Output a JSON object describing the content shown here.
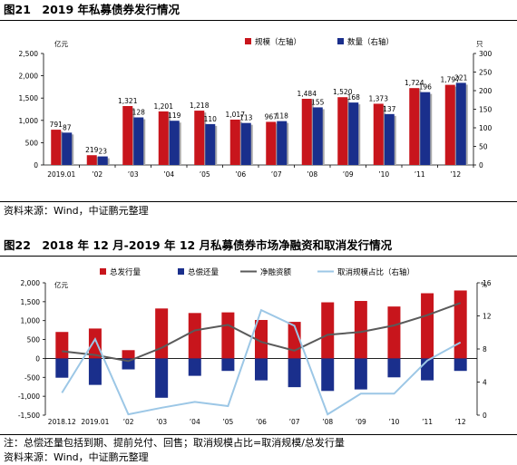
{
  "figure1": {
    "title": "图21　2019 年私募债券发行情况",
    "source": "资料来源：Wind，中证鹏元整理",
    "colors": {
      "bar1": "#c8151c",
      "bar2": "#1a2f8c",
      "shadow": "#aaaaaa"
    }
  },
  "figure2": {
    "title": "图22　2018 年 12 月-2019 年 12 月私募债券市场净融资和取消发行情况",
    "note": "注：总偿还量包括到期、提前兑付、回售；取消规模占比=取消规模/总发行量",
    "source": "资料来源：Wind，中证鹏元整理",
    "colors": {
      "issue": "#c8151c",
      "repay": "#1a2f8c",
      "net": "#5a5a5a",
      "cancel": "#9cc7e6"
    }
  },
  "chart_data": [
    {
      "type": "bar",
      "title": "",
      "left_unit": "亿元",
      "right_unit": "只",
      "categories": [
        "2019.01",
        "02",
        "03",
        "04",
        "05",
        "06",
        "07",
        "08",
        "09",
        "10",
        "11",
        "12"
      ],
      "series": [
        {
          "name": "规模（左轴）",
          "axis": "left",
          "values": [
            791,
            219,
            1321,
            1201,
            1218,
            1017,
            967,
            1484,
            1520,
            1373,
            1724,
            1797
          ],
          "labels": [
            "791",
            "219",
            "1,321",
            "1,201",
            "1,218",
            "1,017",
            "967",
            "1,484",
            "1,520",
            "1,373",
            "1,724",
            "1,797"
          ]
        },
        {
          "name": "数量（右轴）",
          "axis": "right",
          "values": [
            87,
            23,
            128,
            119,
            110,
            113,
            118,
            155,
            168,
            137,
            196,
            221
          ],
          "labels": [
            "87",
            "23",
            "128",
            "119",
            "110",
            "113",
            "118",
            "155",
            "168",
            "137",
            "196",
            "221"
          ]
        }
      ],
      "ylim_left": [
        0,
        2500
      ],
      "yticks_left": [
        "0",
        "500",
        "1,000",
        "1,500",
        "2,000",
        "2,500"
      ],
      "ylim_right": [
        0,
        300
      ],
      "yticks_right": [
        "0",
        "50",
        "100",
        "150",
        "200",
        "250",
        "300"
      ],
      "legend": "top-right",
      "grid": false
    },
    {
      "type": "bar",
      "title": "",
      "left_unit": "亿元",
      "right_unit": "%",
      "categories": [
        "2018.12",
        "2019.01",
        "02",
        "03",
        "04",
        "05",
        "06",
        "07",
        "08",
        "09",
        "10",
        "11",
        "12"
      ],
      "series": [
        {
          "name": "总发行量",
          "type": "bar",
          "axis": "left",
          "values": [
            700,
            791,
            219,
            1321,
            1201,
            1218,
            1017,
            967,
            1484,
            1520,
            1373,
            1724,
            1797
          ]
        },
        {
          "name": "总偿还量",
          "type": "bar",
          "axis": "left",
          "values": [
            -510,
            -700,
            -290,
            -1040,
            -460,
            -330,
            -580,
            -760,
            -860,
            -820,
            -500,
            -580,
            -330
          ]
        },
        {
          "name": "净融资额",
          "type": "line",
          "axis": "left",
          "values": [
            190,
            91,
            -71,
            281,
            741,
            888,
            437,
            207,
            624,
            700,
            873,
            1144,
            1467
          ]
        },
        {
          "name": "取消规模占比（右轴）",
          "type": "line",
          "axis": "right",
          "values": [
            2.7,
            9.2,
            0.1,
            0.9,
            1.6,
            1.1,
            12.7,
            10.8,
            0.1,
            2.6,
            2.6,
            6.6,
            8.8
          ]
        }
      ],
      "ylim_left": [
        -1500,
        2000
      ],
      "yticks_left": [
        "-1,500",
        "-1,000",
        "-500",
        "0",
        "500",
        "1,000",
        "1,500",
        "2,000"
      ],
      "ylim_right": [
        0,
        16
      ],
      "yticks_right": [
        "0",
        "4",
        "8",
        "12",
        "16"
      ],
      "legend": "top",
      "grid": false
    }
  ]
}
